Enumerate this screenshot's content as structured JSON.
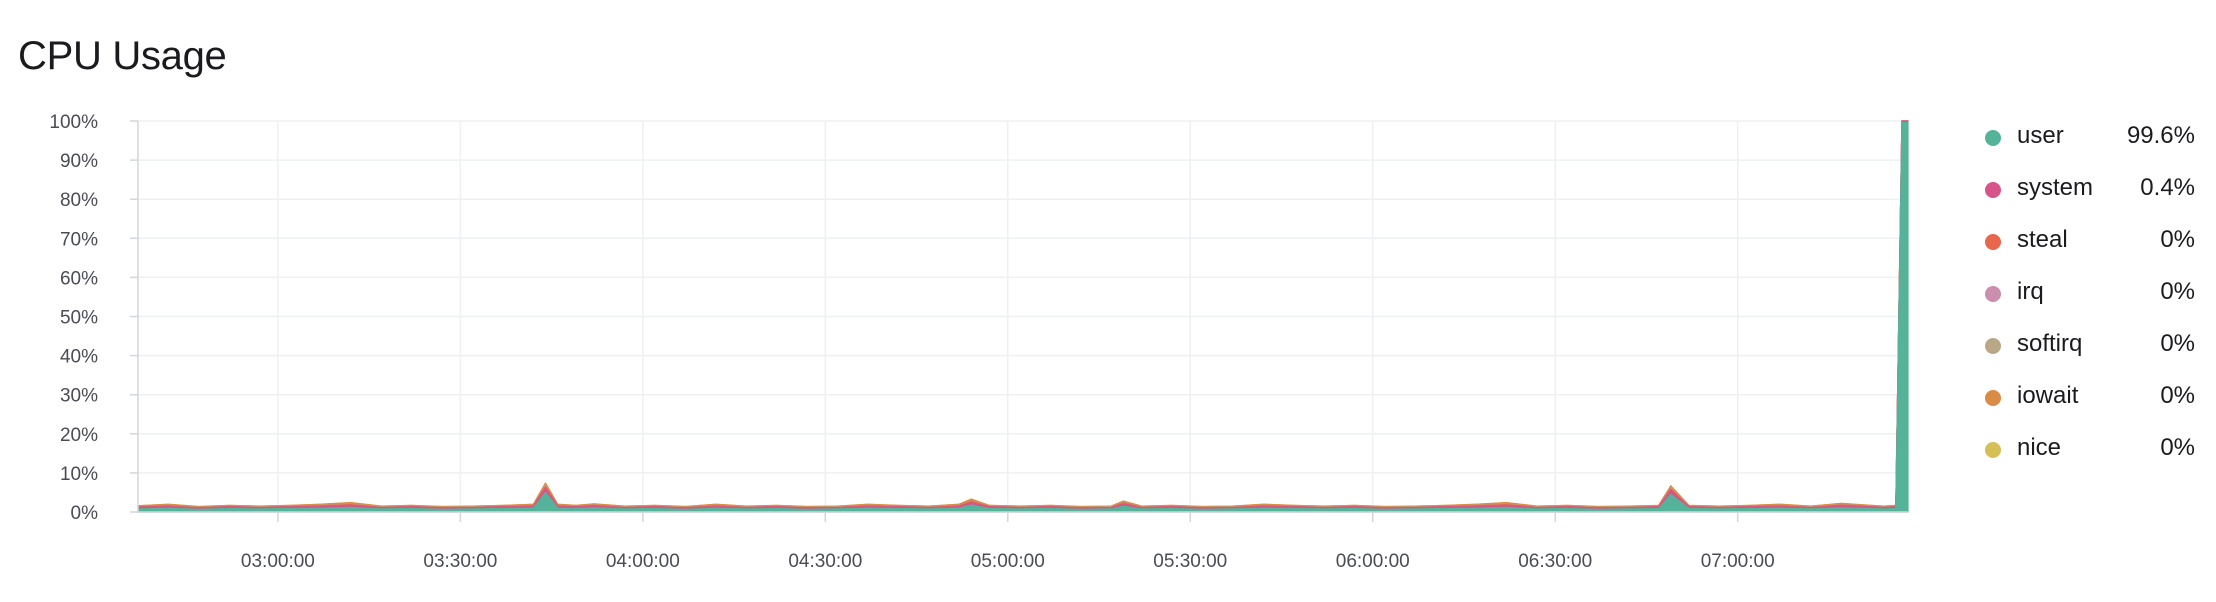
{
  "title": "CPU Usage",
  "chart_data": {
    "type": "area",
    "stacked": true,
    "grid": true,
    "legend_position": "right",
    "ylim": [
      0,
      100
    ],
    "yticks": [
      "100%",
      "90%",
      "80%",
      "70%",
      "60%",
      "50%",
      "40%",
      "30%",
      "20%",
      "10%",
      "0%"
    ],
    "xticks": [
      "03:00:00",
      "03:30:00",
      "04:00:00",
      "04:30:00",
      "05:00:00",
      "05:30:00",
      "06:00:00",
      "06:30:00",
      "07:00:00"
    ],
    "xrange": [
      "02:37:00",
      "07:28:00"
    ],
    "x": [
      "02:37",
      "02:42",
      "02:47",
      "02:52",
      "02:57",
      "03:02",
      "03:07",
      "03:12",
      "03:17",
      "03:22",
      "03:27",
      "03:32",
      "03:37",
      "03:42",
      "03:44",
      "03:46",
      "03:49",
      "03:52",
      "03:57",
      "04:02",
      "04:07",
      "04:12",
      "04:17",
      "04:22",
      "04:27",
      "04:32",
      "04:37",
      "04:42",
      "04:47",
      "04:52",
      "04:54",
      "04:57",
      "05:02",
      "05:07",
      "05:12",
      "05:17",
      "05:19",
      "05:22",
      "05:27",
      "05:32",
      "05:37",
      "05:42",
      "05:47",
      "05:52",
      "05:57",
      "06:02",
      "06:07",
      "06:12",
      "06:17",
      "06:22",
      "06:27",
      "06:32",
      "06:37",
      "06:42",
      "06:47",
      "06:49",
      "06:52",
      "06:57",
      "07:02",
      "07:07",
      "07:12",
      "07:17",
      "07:22",
      "07:24",
      "07:26",
      "07:27",
      "07:28"
    ],
    "series": [
      {
        "name": "user",
        "color": "#54b399",
        "values": [
          0.8,
          1.0,
          0.7,
          0.9,
          0.8,
          0.9,
          1.0,
          1.2,
          0.8,
          0.9,
          0.7,
          0.8,
          0.9,
          1.0,
          5.0,
          1.0,
          0.9,
          1.1,
          0.8,
          0.9,
          0.7,
          1.0,
          0.8,
          0.9,
          0.7,
          0.8,
          1.0,
          0.9,
          0.8,
          1.0,
          1.8,
          0.9,
          0.8,
          0.9,
          0.7,
          0.8,
          1.5,
          0.8,
          0.9,
          0.7,
          0.8,
          1.0,
          0.9,
          0.8,
          0.9,
          0.7,
          0.8,
          0.9,
          1.0,
          1.2,
          0.8,
          0.9,
          0.7,
          0.8,
          0.9,
          4.5,
          0.9,
          0.8,
          0.9,
          1.0,
          0.8,
          1.1,
          0.9,
          0.8,
          0.9,
          99.6,
          99.6
        ]
      },
      {
        "name": "system",
        "color": "#d6548a",
        "values": [
          0.4,
          0.4,
          0.3,
          0.4,
          0.3,
          0.4,
          0.4,
          0.5,
          0.3,
          0.4,
          0.3,
          0.3,
          0.4,
          0.4,
          1.0,
          0.4,
          0.4,
          0.4,
          0.3,
          0.4,
          0.3,
          0.4,
          0.3,
          0.4,
          0.3,
          0.3,
          0.4,
          0.4,
          0.3,
          0.4,
          0.6,
          0.4,
          0.3,
          0.4,
          0.3,
          0.3,
          0.5,
          0.3,
          0.4,
          0.3,
          0.3,
          0.4,
          0.4,
          0.3,
          0.4,
          0.3,
          0.3,
          0.4,
          0.4,
          0.5,
          0.3,
          0.4,
          0.3,
          0.3,
          0.4,
          1.0,
          0.4,
          0.3,
          0.4,
          0.4,
          0.3,
          0.5,
          0.4,
          0.3,
          0.4,
          0.4,
          0.4
        ]
      },
      {
        "name": "steal",
        "color": "#e7664c",
        "values": [
          0.1,
          0.2,
          0.1,
          0.1,
          0.1,
          0.1,
          0.2,
          0.2,
          0.1,
          0.1,
          0.1,
          0.1,
          0.1,
          0.2,
          0.5,
          0.2,
          0.1,
          0.2,
          0.1,
          0.1,
          0.1,
          0.2,
          0.1,
          0.1,
          0.1,
          0.1,
          0.2,
          0.1,
          0.1,
          0.2,
          0.3,
          0.1,
          0.1,
          0.1,
          0.1,
          0.1,
          0.3,
          0.1,
          0.1,
          0.1,
          0.1,
          0.2,
          0.1,
          0.1,
          0.1,
          0.1,
          0.1,
          0.1,
          0.2,
          0.2,
          0.1,
          0.1,
          0.1,
          0.1,
          0.1,
          0.4,
          0.1,
          0.1,
          0.1,
          0.2,
          0.1,
          0.2,
          0.1,
          0.1,
          0.1,
          0.0,
          0.0
        ]
      },
      {
        "name": "irq",
        "color": "#ca8eae",
        "values": [
          0.0,
          0.0,
          0.0,
          0.0,
          0.0,
          0.0,
          0.0,
          0.0,
          0.0,
          0.0,
          0.0,
          0.0,
          0.0,
          0.0,
          0.1,
          0.0,
          0.0,
          0.0,
          0.0,
          0.0,
          0.0,
          0.0,
          0.0,
          0.0,
          0.0,
          0.0,
          0.0,
          0.0,
          0.0,
          0.0,
          0.0,
          0.0,
          0.0,
          0.0,
          0.0,
          0.0,
          0.0,
          0.0,
          0.0,
          0.0,
          0.0,
          0.0,
          0.0,
          0.0,
          0.0,
          0.0,
          0.0,
          0.0,
          0.0,
          0.0,
          0.0,
          0.0,
          0.0,
          0.0,
          0.0,
          0.1,
          0.0,
          0.0,
          0.0,
          0.0,
          0.0,
          0.0,
          0.0,
          0.0,
          0.0,
          0.0,
          0.0
        ]
      },
      {
        "name": "softirq",
        "color": "#b9a888",
        "values": [
          0.1,
          0.1,
          0.1,
          0.1,
          0.1,
          0.1,
          0.1,
          0.1,
          0.1,
          0.1,
          0.1,
          0.1,
          0.1,
          0.1,
          0.2,
          0.1,
          0.1,
          0.1,
          0.1,
          0.1,
          0.1,
          0.1,
          0.1,
          0.1,
          0.1,
          0.1,
          0.1,
          0.1,
          0.1,
          0.1,
          0.1,
          0.1,
          0.1,
          0.1,
          0.1,
          0.1,
          0.1,
          0.1,
          0.1,
          0.1,
          0.1,
          0.1,
          0.1,
          0.1,
          0.1,
          0.1,
          0.1,
          0.1,
          0.1,
          0.1,
          0.1,
          0.1,
          0.1,
          0.1,
          0.1,
          0.2,
          0.1,
          0.1,
          0.1,
          0.1,
          0.1,
          0.1,
          0.1,
          0.1,
          0.1,
          0.0,
          0.0
        ]
      },
      {
        "name": "iowait",
        "color": "#da8b45",
        "values": [
          0.2,
          0.3,
          0.2,
          0.2,
          0.2,
          0.2,
          0.3,
          0.4,
          0.2,
          0.2,
          0.2,
          0.2,
          0.2,
          0.3,
          0.6,
          0.3,
          0.2,
          0.3,
          0.2,
          0.2,
          0.2,
          0.3,
          0.2,
          0.2,
          0.2,
          0.2,
          0.3,
          0.2,
          0.2,
          0.3,
          0.5,
          0.2,
          0.2,
          0.2,
          0.2,
          0.2,
          0.4,
          0.2,
          0.2,
          0.2,
          0.2,
          0.3,
          0.2,
          0.2,
          0.2,
          0.2,
          0.2,
          0.2,
          0.3,
          0.4,
          0.2,
          0.2,
          0.2,
          0.2,
          0.2,
          0.5,
          0.2,
          0.2,
          0.2,
          0.3,
          0.2,
          0.3,
          0.2,
          0.2,
          0.2,
          0.0,
          0.0
        ]
      },
      {
        "name": "nice",
        "color": "#d6bf57",
        "values": [
          0.0,
          0.0,
          0.0,
          0.0,
          0.0,
          0.0,
          0.0,
          0.0,
          0.0,
          0.0,
          0.0,
          0.0,
          0.0,
          0.0,
          0.0,
          0.0,
          0.0,
          0.0,
          0.0,
          0.0,
          0.0,
          0.0,
          0.0,
          0.0,
          0.0,
          0.0,
          0.0,
          0.0,
          0.0,
          0.0,
          0.0,
          0.0,
          0.0,
          0.0,
          0.0,
          0.0,
          0.0,
          0.0,
          0.0,
          0.0,
          0.0,
          0.0,
          0.0,
          0.0,
          0.0,
          0.0,
          0.0,
          0.0,
          0.0,
          0.0,
          0.0,
          0.0,
          0.0,
          0.0,
          0.0,
          0.0,
          0.0,
          0.0,
          0.0,
          0.0,
          0.0,
          0.0,
          0.0,
          0.0,
          0.0,
          0.0,
          0.0
        ]
      }
    ]
  },
  "legend": [
    {
      "label": "user",
      "value": "99.6%",
      "color": "#54b399"
    },
    {
      "label": "system",
      "value": "0.4%",
      "color": "#d6548a"
    },
    {
      "label": "steal",
      "value": "0%",
      "color": "#e7664c"
    },
    {
      "label": "irq",
      "value": "0%",
      "color": "#ca8eae"
    },
    {
      "label": "softirq",
      "value": "0%",
      "color": "#b9a888"
    },
    {
      "label": "iowait",
      "value": "0%",
      "color": "#da8b45"
    },
    {
      "label": "nice",
      "value": "0%",
      "color": "#d6bf57"
    }
  ]
}
